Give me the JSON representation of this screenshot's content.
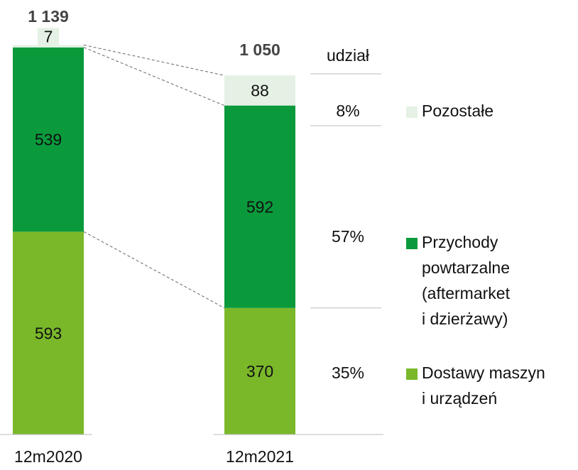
{
  "chart_data": {
    "type": "stacked_bar",
    "categories": [
      "12m2020",
      "12m2021"
    ],
    "series": [
      {
        "name": "Dostawy maszyn i urządzeń",
        "color": "#7ab82a",
        "values": [
          593,
          370
        ]
      },
      {
        "name": "Przychody powtarzalne (aftermarket i dzierżawy)",
        "color": "#0a9a3c",
        "values": [
          539,
          592
        ]
      },
      {
        "name": "Pozostałe",
        "color": "#e4f1e4",
        "values": [
          7,
          88
        ]
      }
    ],
    "totals": [
      1139,
      1050
    ],
    "total_labels": [
      "1 139",
      "1 050"
    ],
    "share_title": "udział",
    "shares": [
      35,
      57,
      8
    ],
    "share_labels": [
      "35%",
      "57%",
      "8%"
    ],
    "ylim": [
      0,
      1200
    ]
  }
}
